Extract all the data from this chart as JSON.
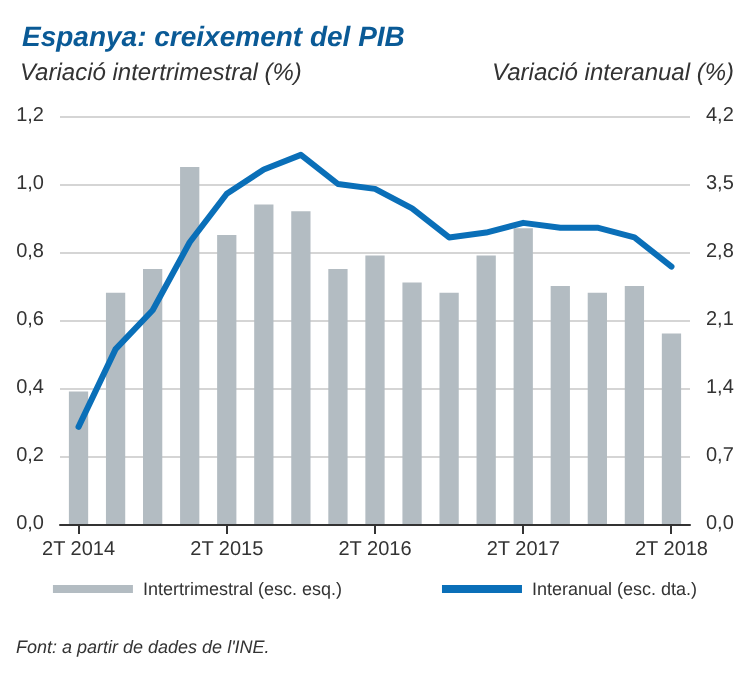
{
  "chart_data": {
    "type": "bar",
    "title": "Espanya: creixement del PIB",
    "ylabel": "Variació intertrimestral (%)",
    "y2label": "Variació interanual (%)",
    "categories": [
      "2T 2014",
      null,
      null,
      null,
      "2T 2015",
      null,
      null,
      null,
      "2T 2016",
      null,
      null,
      null,
      "2T 2017",
      null,
      null,
      null,
      "2T 2018"
    ],
    "series": [
      {
        "name": "Intertrimestral (esc. esq.)",
        "color": "#b3bcc2",
        "values": [
          0.39,
          0.68,
          0.75,
          1.05,
          0.85,
          0.94,
          0.92,
          0.75,
          0.79,
          0.71,
          0.68,
          0.79,
          0.87,
          0.7,
          0.68,
          0.7,
          0.56
        ]
      },
      {
        "name": "Interanual (esc. dta.)",
        "type": "line",
        "axis": "y2",
        "color": "#0a6fb8",
        "values": [
          1.0,
          1.8,
          2.2,
          2.9,
          3.4,
          3.65,
          3.8,
          3.5,
          3.45,
          3.25,
          2.95,
          3.0,
          3.1,
          3.05,
          3.05,
          2.95,
          2.65
        ]
      }
    ],
    "ylim": [
      0,
      1.2
    ],
    "yticks": [
      {
        "value": 0,
        "label": "0,0"
      },
      {
        "value": 0.2,
        "label": "0,2"
      },
      {
        "value": 0.4,
        "label": "0,4"
      },
      {
        "value": 0.6,
        "label": "0,6"
      },
      {
        "value": 0.8,
        "label": "0,8"
      },
      {
        "value": 1.0,
        "label": "1,0"
      },
      {
        "value": 1.2,
        "label": "1,2"
      }
    ],
    "y2lim": [
      0,
      4.2
    ],
    "y2ticks": [
      {
        "value": 0,
        "label": "0,0"
      },
      {
        "value": 0.7,
        "label": "0,7"
      },
      {
        "value": 1.4,
        "label": "1,4"
      },
      {
        "value": 2.1,
        "label": "2,1"
      },
      {
        "value": 2.8,
        "label": "2,8"
      },
      {
        "value": 3.5,
        "label": "3,5"
      },
      {
        "value": 4.2,
        "label": "4,2"
      }
    ],
    "grid": "y",
    "legend": "bottom",
    "marker": "none",
    "line_style": "solid",
    "annotations": [
      "Font: a partir de dades de l'INE."
    ]
  }
}
